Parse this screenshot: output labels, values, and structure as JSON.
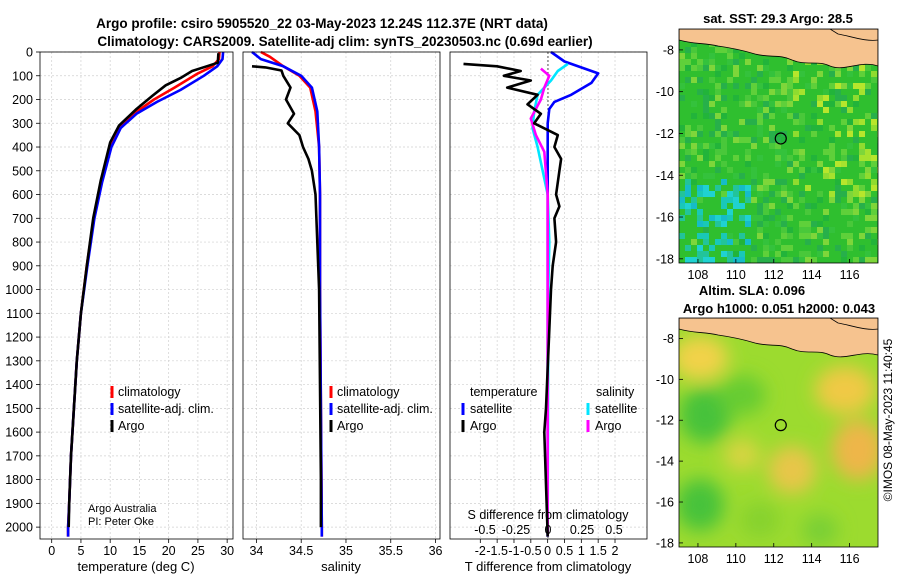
{
  "header": {
    "title_line1": "Argo profile: csiro 5905520_22 03-May-2023 12.24S 112.37E (NRT data)",
    "title_line2": "Climatology: CARS2009. Satellite-adj clim: synTS_20230503.nc (0.69d earlier)"
  },
  "colors": {
    "climatology": "#ff0000",
    "satellite": "#0000ff",
    "argo": "#000000",
    "argo_salinity": "#ff00ff",
    "sat_salinity": "#00e5ff",
    "land": "#f6c38f"
  },
  "chart_data": [
    {
      "type": "line",
      "id": "temperature-profile",
      "xlabel": "temperature (deg C)",
      "ylabel": "",
      "xlim": [
        -2,
        31
      ],
      "ylim": [
        2050,
        0
      ],
      "xticks": [
        0,
        5,
        10,
        15,
        20,
        25,
        30
      ],
      "yticks": [
        0,
        100,
        200,
        300,
        400,
        500,
        600,
        700,
        800,
        900,
        1000,
        1100,
        1200,
        1300,
        1400,
        1500,
        1600,
        1700,
        1800,
        1900,
        2000
      ],
      "legend": [
        "climatology",
        "satellite-adj. clim.",
        "Argo"
      ],
      "annotations": [
        "Argo Australia",
        "PI: Peter Oke"
      ],
      "series": [
        {
          "name": "climatology",
          "color": "#ff0000",
          "points": [
            [
              28.7,
              0
            ],
            [
              28.6,
              30
            ],
            [
              27.5,
              60
            ],
            [
              25,
              90
            ],
            [
              21,
              150
            ],
            [
              17.5,
              200
            ],
            [
              14,
              260
            ],
            [
              11.5,
              320
            ],
            [
              10,
              400
            ],
            [
              8.5,
              550
            ],
            [
              7.2,
              700
            ],
            [
              6,
              900
            ],
            [
              5,
              1100
            ],
            [
              4.3,
              1300
            ],
            [
              3.8,
              1500
            ],
            [
              3.3,
              1700
            ],
            [
              3,
              1900
            ],
            [
              2.8,
              2000
            ],
            [
              2.8,
              2040
            ]
          ]
        },
        {
          "name": "satellite-adj. clim.",
          "color": "#0000ff",
          "points": [
            [
              29.3,
              0
            ],
            [
              29.2,
              30
            ],
            [
              28.3,
              60
            ],
            [
              26,
              100
            ],
            [
              22,
              160
            ],
            [
              18,
              210
            ],
            [
              14.5,
              260
            ],
            [
              11.8,
              320
            ],
            [
              10.2,
              400
            ],
            [
              8.6,
              550
            ],
            [
              7.3,
              700
            ],
            [
              6.1,
              900
            ],
            [
              5,
              1100
            ],
            [
              4.3,
              1300
            ],
            [
              3.8,
              1500
            ],
            [
              3.3,
              1700
            ],
            [
              3,
              1900
            ],
            [
              2.8,
              2000
            ],
            [
              2.8,
              2040
            ]
          ]
        },
        {
          "name": "Argo",
          "color": "#000000",
          "points": [
            [
              28.5,
              5
            ],
            [
              28.4,
              45
            ],
            [
              26.5,
              60
            ],
            [
              24,
              80
            ],
            [
              22,
              110
            ],
            [
              19.5,
              140
            ],
            [
              17.2,
              185
            ],
            [
              14.5,
              240
            ],
            [
              11.5,
              310
            ],
            [
              10,
              380
            ],
            [
              8.4,
              540
            ],
            [
              7.1,
              700
            ],
            [
              6,
              900
            ],
            [
              5,
              1100
            ],
            [
              4.3,
              1300
            ],
            [
              3.8,
              1500
            ],
            [
              3.3,
              1700
            ],
            [
              3,
              1900
            ],
            [
              2.9,
              2000
            ]
          ]
        }
      ]
    },
    {
      "type": "line",
      "id": "salinity-profile",
      "xlabel": "salinity",
      "xlim": [
        33.85,
        36.05
      ],
      "ylim": [
        2050,
        0
      ],
      "xticks": [
        34,
        34.5,
        35,
        35.5,
        36
      ],
      "legend": [
        "climatology",
        "satellite-adj. clim.",
        "Argo"
      ],
      "series": [
        {
          "name": "climatology",
          "color": "#ff0000",
          "points": [
            [
              34.05,
              0
            ],
            [
              34.15,
              20
            ],
            [
              34.3,
              60
            ],
            [
              34.48,
              100
            ],
            [
              34.6,
              150
            ],
            [
              34.66,
              250
            ],
            [
              34.7,
              400
            ],
            [
              34.71,
              600
            ],
            [
              34.71,
              1000
            ],
            [
              34.72,
              1500
            ],
            [
              34.73,
              2000
            ],
            [
              34.73,
              2040
            ]
          ]
        },
        {
          "name": "satellite-adj. clim.",
          "color": "#0000ff",
          "points": [
            [
              33.95,
              0
            ],
            [
              34.05,
              30
            ],
            [
              34.3,
              60
            ],
            [
              34.5,
              100
            ],
            [
              34.62,
              150
            ],
            [
              34.68,
              250
            ],
            [
              34.7,
              400
            ],
            [
              34.71,
              600
            ],
            [
              34.71,
              1000
            ],
            [
              34.72,
              1500
            ],
            [
              34.73,
              2000
            ],
            [
              34.73,
              2040
            ]
          ]
        },
        {
          "name": "Argo",
          "color": "#000000",
          "points": [
            [
              33.95,
              60
            ],
            [
              34.1,
              65
            ],
            [
              34.28,
              78
            ],
            [
              34.3,
              100
            ],
            [
              34.38,
              150
            ],
            [
              34.33,
              200
            ],
            [
              34.42,
              260
            ],
            [
              34.35,
              300
            ],
            [
              34.48,
              350
            ],
            [
              34.52,
              400
            ],
            [
              34.58,
              450
            ],
            [
              34.62,
              500
            ],
            [
              34.66,
              600
            ],
            [
              34.68,
              800
            ],
            [
              34.7,
              1000
            ],
            [
              34.71,
              1400
            ],
            [
              34.72,
              1800
            ],
            [
              34.72,
              2000
            ]
          ]
        }
      ]
    },
    {
      "type": "line",
      "id": "difference-profile",
      "xlabel": "T difference from climatology",
      "xlabel_top": "S difference from climatology",
      "xlim": [
        -2.9,
        2.95
      ],
      "xticks": [
        -2,
        -1.5,
        -1,
        -0.5,
        0,
        0.5,
        1,
        1.5,
        2
      ],
      "xticklabels": [
        "-2",
        "-1.5",
        "-1",
        "-0.5",
        "0",
        "0.5",
        "1",
        "1.5",
        "2"
      ],
      "s_ticklabels": [
        "-0.5",
        "-0.25",
        "0",
        "0.25",
        "0.5"
      ],
      "legend_headers": [
        "temperature",
        "salinity"
      ],
      "legend": [
        "satellite",
        "Argo",
        "satellite",
        "Argo"
      ],
      "series": [
        {
          "name": "T satellite",
          "color": "#0000ff",
          "points": [
            [
              0.1,
              0
            ],
            [
              0.5,
              40
            ],
            [
              1.5,
              90
            ],
            [
              1.3,
              130
            ],
            [
              0.7,
              180
            ],
            [
              0.2,
              210
            ],
            [
              0.05,
              240
            ],
            [
              0,
              300
            ],
            [
              0,
              400
            ],
            [
              0,
              1000
            ],
            [
              0,
              2040
            ]
          ]
        },
        {
          "name": "S satellite",
          "color": "#00e5ff",
          "points": [
            [
              0.6,
              50
            ],
            [
              0.3,
              80
            ],
            [
              0.1,
              120
            ],
            [
              -0.3,
              180
            ],
            [
              -0.4,
              250
            ],
            [
              -0.45,
              320
            ],
            [
              -0.3,
              400
            ],
            [
              0,
              600
            ],
            [
              0.05,
              800
            ],
            [
              0.02,
              1000
            ],
            [
              0,
              2040
            ]
          ]
        },
        {
          "name": "S Argo",
          "color": "#ff00ff",
          "points": [
            [
              -0.2,
              70
            ],
            [
              0.05,
              100
            ],
            [
              -0.1,
              150
            ],
            [
              -0.2,
              200
            ],
            [
              -0.5,
              280
            ],
            [
              -0.35,
              350
            ],
            [
              -0.1,
              420
            ],
            [
              0,
              600
            ],
            [
              0,
              2040
            ]
          ]
        },
        {
          "name": "T Argo",
          "color": "#000000",
          "points": [
            [
              -2.5,
              50
            ],
            [
              -1.5,
              60
            ],
            [
              -0.8,
              80
            ],
            [
              -1.3,
              100
            ],
            [
              -0.5,
              120
            ],
            [
              -1.2,
              150
            ],
            [
              -0.3,
              180
            ],
            [
              -0.6,
              220
            ],
            [
              -0.2,
              260
            ],
            [
              -0.4,
              300
            ],
            [
              0.3,
              350
            ],
            [
              0.2,
              400
            ],
            [
              0.4,
              450
            ],
            [
              0.35,
              500
            ],
            [
              0.25,
              600
            ],
            [
              0.35,
              650
            ],
            [
              0.2,
              700
            ],
            [
              0.25,
              800
            ],
            [
              0.15,
              900
            ],
            [
              0.1,
              1000
            ],
            [
              -0.05,
              1500
            ],
            [
              -0.1,
              1600
            ],
            [
              0,
              2040
            ]
          ]
        }
      ]
    },
    {
      "type": "heatmap",
      "id": "sst-map",
      "title": "sat. SST: 29.3 Argo: 28.5",
      "xlim": [
        107,
        117.5
      ],
      "ylim": [
        -18.2,
        -7
      ],
      "xticks": [
        108,
        110,
        112,
        114,
        116
      ],
      "yticks": [
        -8,
        -10,
        -12,
        -14,
        -16,
        -18
      ],
      "argo_position": [
        112.37,
        -12.24
      ]
    },
    {
      "type": "heatmap",
      "id": "sla-map",
      "title_line1": "Altim. SLA: 0.096",
      "title_line2": "Argo h1000: 0.051 h2000: 0.043",
      "xlim": [
        107,
        117.5
      ],
      "ylim": [
        -18.2,
        -7
      ],
      "xticks": [
        108,
        110,
        112,
        114,
        116
      ],
      "yticks": [
        -8,
        -10,
        -12,
        -14,
        -16,
        -18
      ],
      "argo_position": [
        112.37,
        -12.24
      ]
    }
  ],
  "footer": {
    "stamp": "©IMOS 08-May-2023 11:40:45"
  }
}
